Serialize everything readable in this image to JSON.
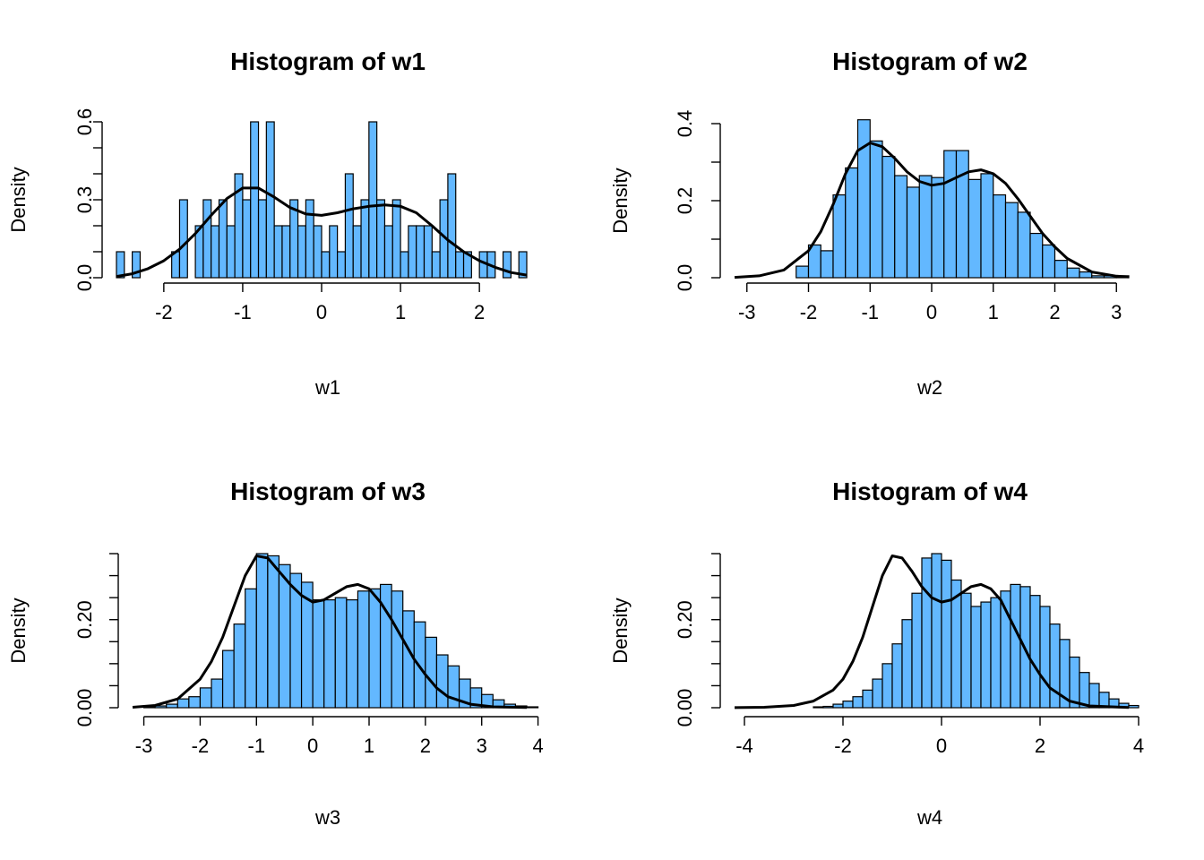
{
  "colors": {
    "bar_fill": "#63B8FF",
    "bar_stroke": "#000000",
    "curve": "#000000"
  },
  "chart_data": [
    {
      "type": "bar",
      "title": "Histogram of w1",
      "xlabel": "w1",
      "ylabel": "Density",
      "xlim": [
        -2.6,
        2.6
      ],
      "ylim": [
        0,
        0.6
      ],
      "x_ticks": [
        -2,
        -1,
        0,
        1,
        2
      ],
      "x_tick_labels": [
        "-2",
        "-1",
        "0",
        "1",
        "2"
      ],
      "y_ticks": [
        0,
        0.1,
        0.2,
        0.3,
        0.4,
        0.5,
        0.6
      ],
      "y_tick_labels": [
        "0.0",
        "",
        "",
        "0.3",
        "",
        "",
        "0.6"
      ],
      "grid": false,
      "bin_edges_start": -2.6,
      "bin_width": 0.1,
      "values": [
        0.1,
        0,
        0.1,
        0,
        0,
        0,
        0,
        0.1,
        0.3,
        0,
        0.2,
        0.3,
        0.2,
        0.3,
        0.2,
        0.4,
        0.3,
        0.6,
        0.3,
        0.6,
        0.2,
        0.2,
        0.3,
        0.2,
        0.3,
        0.2,
        0.1,
        0.2,
        0.1,
        0.4,
        0.2,
        0.3,
        0.6,
        0.3,
        0.2,
        0.3,
        0.1,
        0.2,
        0.2,
        0.2,
        0.1,
        0.3,
        0.4,
        0.1,
        0.1,
        0,
        0.1,
        0.1,
        0,
        0.1,
        0,
        0.1
      ],
      "density": {
        "x": [
          -2.6,
          -2.4,
          -2.2,
          -2.0,
          -1.8,
          -1.6,
          -1.4,
          -1.2,
          -1.0,
          -0.8,
          -0.6,
          -0.4,
          -0.2,
          0.0,
          0.2,
          0.4,
          0.6,
          0.8,
          1.0,
          1.2,
          1.4,
          1.6,
          1.8,
          2.0,
          2.2,
          2.4,
          2.6
        ],
        "y": [
          0.005,
          0.015,
          0.035,
          0.065,
          0.11,
          0.17,
          0.24,
          0.305,
          0.345,
          0.345,
          0.31,
          0.27,
          0.245,
          0.24,
          0.25,
          0.265,
          0.275,
          0.28,
          0.275,
          0.25,
          0.2,
          0.145,
          0.1,
          0.065,
          0.04,
          0.02,
          0.01
        ]
      }
    },
    {
      "type": "bar",
      "title": "Histogram of w2",
      "xlabel": "w2",
      "ylabel": "Density",
      "xlim": [
        -3.2,
        3.2
      ],
      "ylim": [
        0,
        0.4
      ],
      "x_ticks": [
        -3,
        -2,
        -1,
        0,
        1,
        2,
        3
      ],
      "x_tick_labels": [
        "-3",
        "-2",
        "-1",
        "0",
        "1",
        "2",
        "3"
      ],
      "y_ticks": [
        0,
        0.1,
        0.2,
        0.3,
        0.4
      ],
      "y_tick_labels": [
        "0.0",
        "",
        "0.2",
        "",
        "0.4"
      ],
      "grid": false,
      "bin_edges_start": -3.2,
      "bin_width": 0.2,
      "values": [
        0,
        0,
        0,
        0,
        0,
        0.03,
        0.085,
        0.07,
        0.215,
        0.285,
        0.41,
        0.355,
        0.315,
        0.265,
        0.235,
        0.265,
        0.26,
        0.33,
        0.33,
        0.255,
        0.27,
        0.215,
        0.195,
        0.17,
        0.115,
        0.085,
        0.045,
        0.025,
        0.015,
        0.005,
        0.005,
        0.005
      ],
      "density": {
        "x": [
          -3.2,
          -2.8,
          -2.4,
          -2.0,
          -1.8,
          -1.6,
          -1.4,
          -1.2,
          -1.0,
          -0.8,
          -0.6,
          -0.4,
          -0.2,
          0.0,
          0.2,
          0.4,
          0.6,
          0.8,
          1.0,
          1.2,
          1.4,
          1.6,
          1.8,
          2.0,
          2.2,
          2.6,
          3.0,
          3.2
        ],
        "y": [
          0.001,
          0.005,
          0.02,
          0.07,
          0.12,
          0.19,
          0.27,
          0.33,
          0.35,
          0.34,
          0.31,
          0.275,
          0.25,
          0.24,
          0.245,
          0.26,
          0.275,
          0.28,
          0.27,
          0.245,
          0.205,
          0.16,
          0.115,
          0.08,
          0.05,
          0.015,
          0.004,
          0.002
        ]
      }
    },
    {
      "type": "bar",
      "title": "Histogram of w3",
      "xlabel": "w3",
      "ylabel": "Density",
      "xlim": [
        -3.2,
        3.8
      ],
      "ylim": [
        0,
        0.35
      ],
      "x_ticks": [
        -3,
        -2,
        -1,
        0,
        1,
        2,
        3,
        4
      ],
      "x_tick_labels": [
        "-3",
        "-2",
        "-1",
        "0",
        "1",
        "2",
        "3",
        "4"
      ],
      "y_ticks": [
        0,
        0.05,
        0.1,
        0.15,
        0.2,
        0.25,
        0.3,
        0.35
      ],
      "y_tick_labels": [
        "0.00",
        "",
        "",
        "",
        "0.20",
        "",
        "",
        ""
      ],
      "grid": false,
      "bin_edges_start": -3.2,
      "bin_width": 0.2,
      "values": [
        0,
        0.002,
        0.004,
        0.008,
        0.02,
        0.025,
        0.045,
        0.065,
        0.13,
        0.19,
        0.27,
        0.35,
        0.345,
        0.325,
        0.305,
        0.285,
        0.245,
        0.245,
        0.25,
        0.245,
        0.265,
        0.27,
        0.28,
        0.265,
        0.22,
        0.195,
        0.16,
        0.12,
        0.095,
        0.065,
        0.045,
        0.03,
        0.018,
        0.008,
        0.004,
        0.002
      ],
      "density": {
        "x": [
          -3.2,
          -2.8,
          -2.4,
          -2.0,
          -1.8,
          -1.6,
          -1.4,
          -1.2,
          -1.0,
          -0.8,
          -0.6,
          -0.4,
          -0.2,
          0.0,
          0.2,
          0.4,
          0.6,
          0.8,
          1.0,
          1.2,
          1.4,
          1.6,
          1.8,
          2.0,
          2.2,
          2.4,
          2.8,
          3.2,
          3.8
        ],
        "y": [
          0.001,
          0.005,
          0.02,
          0.065,
          0.105,
          0.16,
          0.23,
          0.3,
          0.345,
          0.34,
          0.31,
          0.28,
          0.255,
          0.24,
          0.245,
          0.26,
          0.275,
          0.28,
          0.27,
          0.24,
          0.2,
          0.155,
          0.11,
          0.075,
          0.045,
          0.025,
          0.008,
          0.002,
          0.0005
        ]
      }
    },
    {
      "type": "bar",
      "title": "Histogram of w4",
      "xlabel": "w4",
      "ylabel": "Density",
      "xlim": [
        -4.2,
        3.8
      ],
      "ylim": [
        0,
        0.35
      ],
      "x_ticks": [
        -4,
        -2,
        0,
        2,
        4
      ],
      "x_tick_labels": [
        "-4",
        "-2",
        "0",
        "2",
        "4"
      ],
      "y_ticks": [
        0,
        0.05,
        0.1,
        0.15,
        0.2,
        0.25,
        0.3,
        0.35
      ],
      "y_tick_labels": [
        "0.00",
        "",
        "",
        "",
        "0.20",
        "",
        "",
        ""
      ],
      "grid": false,
      "bin_edges_start": -4.2,
      "bin_width": 0.2,
      "values": [
        0,
        0,
        0,
        0,
        0,
        0,
        0,
        0,
        0.002,
        0.003,
        0.008,
        0.015,
        0.025,
        0.04,
        0.065,
        0.1,
        0.145,
        0.2,
        0.26,
        0.34,
        0.35,
        0.335,
        0.29,
        0.26,
        0.23,
        0.24,
        0.25,
        0.265,
        0.28,
        0.275,
        0.255,
        0.23,
        0.19,
        0.155,
        0.115,
        0.08,
        0.055,
        0.035,
        0.02,
        0.01,
        0.005
      ],
      "density": {
        "x": [
          -4.2,
          -3.6,
          -3.0,
          -2.6,
          -2.2,
          -2.0,
          -1.8,
          -1.6,
          -1.4,
          -1.2,
          -1.0,
          -0.8,
          -0.6,
          -0.4,
          -0.2,
          0.0,
          0.2,
          0.4,
          0.6,
          0.8,
          1.0,
          1.2,
          1.4,
          1.6,
          1.8,
          2.0,
          2.2,
          2.6,
          3.0,
          3.8
        ],
        "y": [
          0.0002,
          0.001,
          0.005,
          0.015,
          0.04,
          0.065,
          0.105,
          0.16,
          0.23,
          0.3,
          0.345,
          0.34,
          0.31,
          0.275,
          0.25,
          0.24,
          0.245,
          0.26,
          0.275,
          0.28,
          0.27,
          0.245,
          0.2,
          0.155,
          0.11,
          0.075,
          0.045,
          0.015,
          0.004,
          0.0005
        ]
      }
    }
  ]
}
